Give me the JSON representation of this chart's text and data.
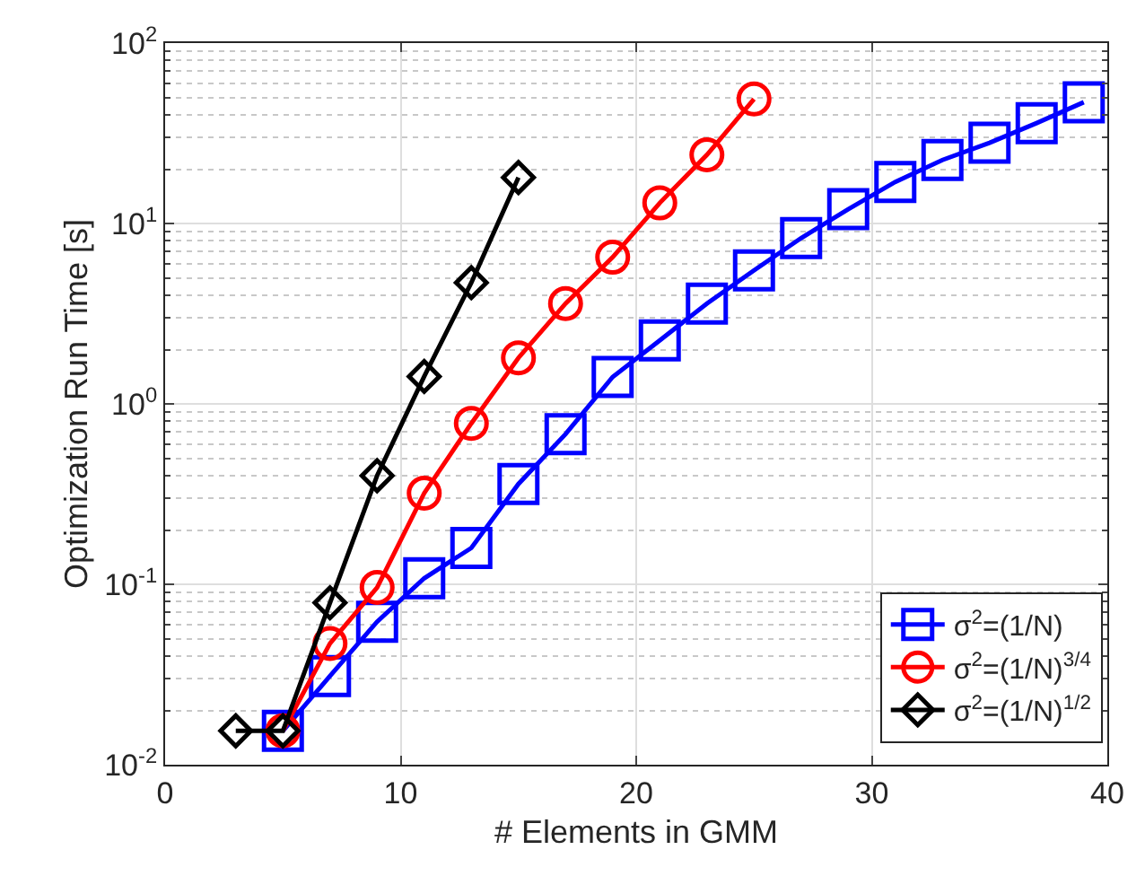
{
  "chart_data": {
    "type": "line",
    "xlabel": "# Elements in GMM",
    "ylabel": "Optimization Run Time [s]",
    "log": "y",
    "grid": true,
    "legend": "bottom right",
    "xlim": [
      0,
      40
    ],
    "xticks": [
      0,
      10,
      20,
      30,
      40
    ],
    "ylim": [
      0.01,
      100
    ],
    "yticks": [
      {
        "value": 0.01,
        "label": "10$^{-2}$"
      },
      {
        "value": 0.1,
        "label": "10$^{-1}$"
      },
      {
        "value": 1,
        "label": "10$^{0}$"
      },
      {
        "value": 10,
        "label": "10$^{1}$"
      },
      {
        "value": 100,
        "label": "10$^{2}$"
      }
    ],
    "series": [
      {
        "name": "σ$^{2}$=(1/N)",
        "color": "#0000ff",
        "marker": "square",
        "x": [
          5,
          7,
          9,
          11,
          13,
          15,
          17,
          19,
          21,
          23,
          25,
          27,
          29,
          31,
          33,
          35,
          37,
          39
        ],
        "values": [
          0.0154,
          0.031,
          0.062,
          0.108,
          0.159,
          0.36,
          0.68,
          1.41,
          2.25,
          3.6,
          5.5,
          8.3,
          12,
          17,
          22.5,
          28,
          36,
          47
        ]
      },
      {
        "name": "σ$^{2}$=(1/N)$^{3/4}$",
        "color": "#ff0000",
        "marker": "circle",
        "x": [
          5,
          7,
          9,
          11,
          13,
          15,
          17,
          19,
          21,
          23,
          25
        ],
        "values": [
          0.0154,
          0.047,
          0.096,
          0.32,
          0.78,
          1.8,
          3.6,
          6.5,
          13,
          24,
          49
        ]
      },
      {
        "name": "σ$^{2}$=(1/N)$^{1/2}$",
        "color": "#000000",
        "marker": "diamond",
        "x": [
          3,
          5,
          7,
          9,
          11,
          13,
          15
        ],
        "values": [
          0.0154,
          0.0154,
          0.079,
          0.4,
          1.42,
          4.7,
          18
        ]
      }
    ]
  }
}
